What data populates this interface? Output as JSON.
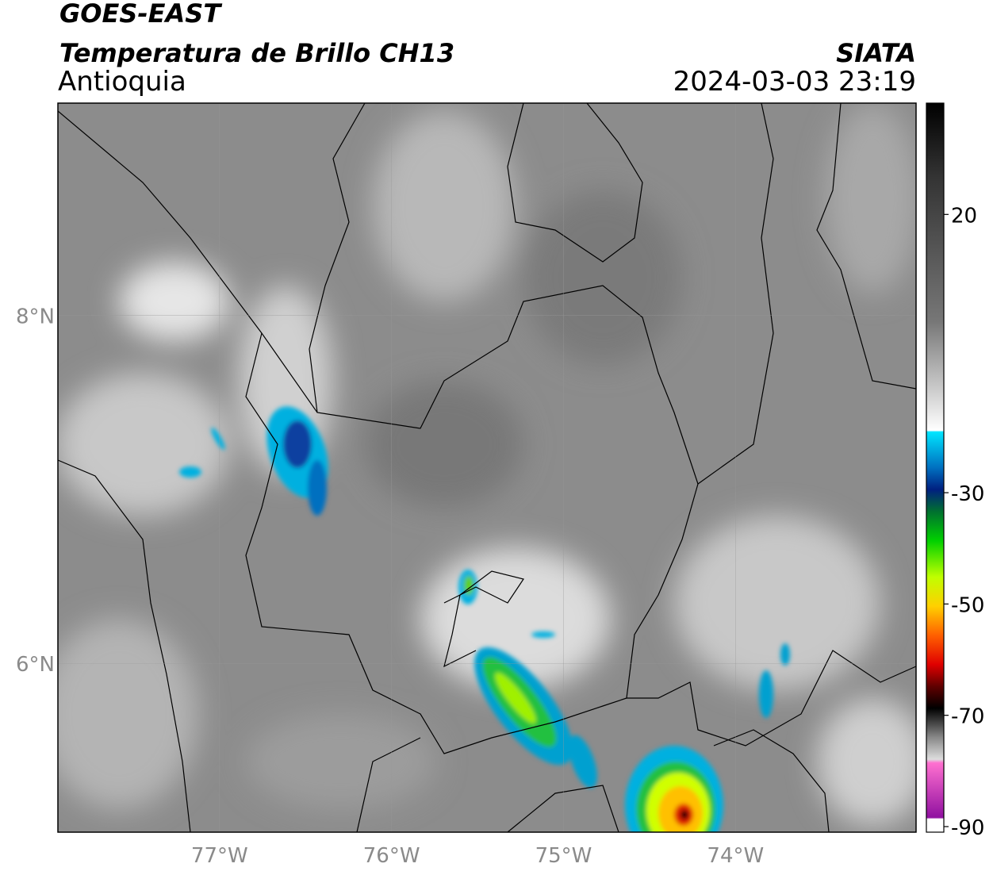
{
  "header": {
    "source": "GOES-EAST",
    "product": "Temperatura de Brillo CH13",
    "region": "Antioquia",
    "agency": "SIATA",
    "timestamp": "2024-03-03 23:19"
  },
  "map": {
    "lonlim": [
      -77.94,
      -72.95
    ],
    "latlim": [
      5.03,
      9.22
    ],
    "lon_ticks": [
      {
        "value": -77,
        "label": "77°W"
      },
      {
        "value": -76,
        "label": "76°W"
      },
      {
        "value": -75,
        "label": "75°W"
      },
      {
        "value": -74,
        "label": "74°W"
      }
    ],
    "lat_ticks": [
      {
        "value": 8,
        "label": "8°N"
      },
      {
        "value": 6,
        "label": "6°N"
      }
    ]
  },
  "colorbar": {
    "lim": [
      -91,
      40
    ],
    "ticks": [
      20,
      -30,
      -50,
      -70,
      -90
    ]
  }
}
